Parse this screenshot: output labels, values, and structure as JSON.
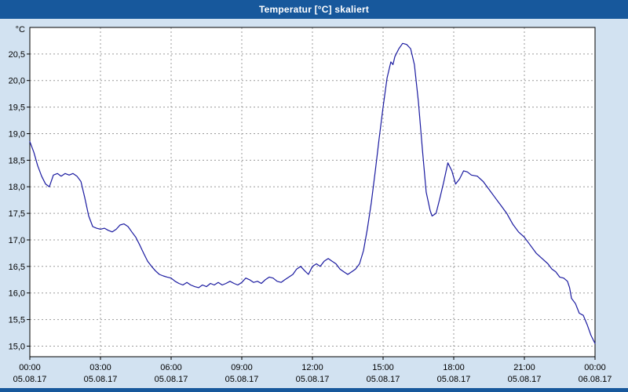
{
  "window": {
    "title": "Temperatur [°C] skaliert"
  },
  "colors": {
    "titlebar": "#17589c",
    "frame": "#d2e2f1",
    "plot_bg": "#ffffff",
    "grid": "#9b9b9b",
    "line": "#1a1aa0",
    "axis_text": "#000000",
    "border": "#000000"
  },
  "chart_data": {
    "type": "line",
    "title": "Temperatur [°C] skaliert",
    "ylabel": "°C",
    "y_unit_label": "°C",
    "ylim": [
      14.8,
      21.0
    ],
    "xlim_hours": [
      0,
      24
    ],
    "grid": "dashed",
    "legend": "none",
    "y_ticks": [
      {
        "value": 15.0,
        "label": "15,0"
      },
      {
        "value": 15.5,
        "label": "15,5"
      },
      {
        "value": 16.0,
        "label": "16,0"
      },
      {
        "value": 16.5,
        "label": "16,5"
      },
      {
        "value": 17.0,
        "label": "17,0"
      },
      {
        "value": 17.5,
        "label": "17,5"
      },
      {
        "value": 18.0,
        "label": "18,0"
      },
      {
        "value": 18.5,
        "label": "18,5"
      },
      {
        "value": 19.0,
        "label": "19,0"
      },
      {
        "value": 19.5,
        "label": "19,5"
      },
      {
        "value": 20.0,
        "label": "20,0"
      },
      {
        "value": 20.5,
        "label": "20,5"
      }
    ],
    "x_ticks": [
      {
        "hour": 0,
        "time": "00:00",
        "date": "05.08.17"
      },
      {
        "hour": 3,
        "time": "03:00",
        "date": "05.08.17"
      },
      {
        "hour": 6,
        "time": "06:00",
        "date": "05.08.17"
      },
      {
        "hour": 9,
        "time": "09:00",
        "date": "05.08.17"
      },
      {
        "hour": 12,
        "time": "12:00",
        "date": "05.08.17"
      },
      {
        "hour": 15,
        "time": "15:00",
        "date": "05.08.17"
      },
      {
        "hour": 18,
        "time": "18:00",
        "date": "05.08.17"
      },
      {
        "hour": 21,
        "time": "21:00",
        "date": "05.08.17"
      },
      {
        "hour": 24,
        "time": "00:00",
        "date": "06.08.17"
      }
    ],
    "series": [
      {
        "name": "Temperatur",
        "color": "#1a1aa0",
        "points": [
          [
            0,
            18.85
          ],
          [
            0.17,
            18.65
          ],
          [
            0.33,
            18.4
          ],
          [
            0.5,
            18.2
          ],
          [
            0.67,
            18.05
          ],
          [
            0.83,
            18.0
          ],
          [
            1.0,
            18.22
          ],
          [
            1.17,
            18.25
          ],
          [
            1.33,
            18.2
          ],
          [
            1.5,
            18.25
          ],
          [
            1.67,
            18.22
          ],
          [
            1.83,
            18.25
          ],
          [
            2.0,
            18.2
          ],
          [
            2.17,
            18.1
          ],
          [
            2.33,
            17.8
          ],
          [
            2.5,
            17.45
          ],
          [
            2.67,
            17.25
          ],
          [
            2.83,
            17.22
          ],
          [
            3.0,
            17.2
          ],
          [
            3.17,
            17.22
          ],
          [
            3.33,
            17.18
          ],
          [
            3.5,
            17.15
          ],
          [
            3.67,
            17.2
          ],
          [
            3.83,
            17.28
          ],
          [
            4.0,
            17.3
          ],
          [
            4.17,
            17.25
          ],
          [
            4.33,
            17.15
          ],
          [
            4.5,
            17.05
          ],
          [
            4.67,
            16.9
          ],
          [
            4.83,
            16.75
          ],
          [
            5.0,
            16.6
          ],
          [
            5.17,
            16.5
          ],
          [
            5.33,
            16.42
          ],
          [
            5.5,
            16.35
          ],
          [
            5.67,
            16.32
          ],
          [
            5.83,
            16.3
          ],
          [
            6.0,
            16.28
          ],
          [
            6.17,
            16.22
          ],
          [
            6.33,
            16.18
          ],
          [
            6.5,
            16.15
          ],
          [
            6.67,
            16.2
          ],
          [
            6.83,
            16.15
          ],
          [
            7.0,
            16.12
          ],
          [
            7.17,
            16.1
          ],
          [
            7.33,
            16.15
          ],
          [
            7.5,
            16.12
          ],
          [
            7.67,
            16.18
          ],
          [
            7.83,
            16.15
          ],
          [
            8.0,
            16.2
          ],
          [
            8.17,
            16.15
          ],
          [
            8.33,
            16.18
          ],
          [
            8.5,
            16.22
          ],
          [
            8.67,
            16.18
          ],
          [
            8.83,
            16.15
          ],
          [
            9.0,
            16.2
          ],
          [
            9.17,
            16.28
          ],
          [
            9.33,
            16.25
          ],
          [
            9.5,
            16.2
          ],
          [
            9.67,
            16.22
          ],
          [
            9.83,
            16.18
          ],
          [
            10.0,
            16.25
          ],
          [
            10.17,
            16.3
          ],
          [
            10.33,
            16.28
          ],
          [
            10.5,
            16.22
          ],
          [
            10.67,
            16.2
          ],
          [
            10.83,
            16.25
          ],
          [
            11.0,
            16.3
          ],
          [
            11.17,
            16.35
          ],
          [
            11.33,
            16.45
          ],
          [
            11.5,
            16.5
          ],
          [
            11.67,
            16.42
          ],
          [
            11.83,
            16.35
          ],
          [
            12.0,
            16.5
          ],
          [
            12.17,
            16.55
          ],
          [
            12.33,
            16.5
          ],
          [
            12.5,
            16.6
          ],
          [
            12.67,
            16.65
          ],
          [
            12.83,
            16.6
          ],
          [
            13.0,
            16.55
          ],
          [
            13.17,
            16.45
          ],
          [
            13.33,
            16.4
          ],
          [
            13.5,
            16.35
          ],
          [
            13.67,
            16.4
          ],
          [
            13.83,
            16.45
          ],
          [
            14.0,
            16.55
          ],
          [
            14.17,
            16.8
          ],
          [
            14.33,
            17.2
          ],
          [
            14.5,
            17.7
          ],
          [
            14.67,
            18.3
          ],
          [
            14.83,
            18.9
          ],
          [
            15.0,
            19.5
          ],
          [
            15.17,
            20.05
          ],
          [
            15.33,
            20.35
          ],
          [
            15.42,
            20.3
          ],
          [
            15.5,
            20.45
          ],
          [
            15.67,
            20.6
          ],
          [
            15.83,
            20.7
          ],
          [
            16.0,
            20.68
          ],
          [
            16.17,
            20.6
          ],
          [
            16.33,
            20.3
          ],
          [
            16.5,
            19.6
          ],
          [
            16.67,
            18.7
          ],
          [
            16.83,
            17.9
          ],
          [
            17.0,
            17.55
          ],
          [
            17.08,
            17.45
          ],
          [
            17.25,
            17.5
          ],
          [
            17.42,
            17.8
          ],
          [
            17.58,
            18.1
          ],
          [
            17.75,
            18.45
          ],
          [
            17.92,
            18.3
          ],
          [
            18.08,
            18.05
          ],
          [
            18.25,
            18.15
          ],
          [
            18.42,
            18.3
          ],
          [
            18.58,
            18.28
          ],
          [
            18.75,
            18.22
          ],
          [
            19.0,
            18.2
          ],
          [
            19.25,
            18.1
          ],
          [
            19.5,
            17.95
          ],
          [
            19.75,
            17.8
          ],
          [
            20.0,
            17.65
          ],
          [
            20.25,
            17.5
          ],
          [
            20.5,
            17.3
          ],
          [
            20.75,
            17.15
          ],
          [
            21.0,
            17.05
          ],
          [
            21.25,
            16.9
          ],
          [
            21.5,
            16.75
          ],
          [
            21.75,
            16.65
          ],
          [
            22.0,
            16.55
          ],
          [
            22.17,
            16.45
          ],
          [
            22.33,
            16.4
          ],
          [
            22.5,
            16.3
          ],
          [
            22.67,
            16.28
          ],
          [
            22.83,
            16.22
          ],
          [
            22.92,
            16.1
          ],
          [
            23.0,
            15.9
          ],
          [
            23.17,
            15.8
          ],
          [
            23.33,
            15.62
          ],
          [
            23.5,
            15.58
          ],
          [
            23.67,
            15.4
          ],
          [
            23.83,
            15.2
          ],
          [
            24.0,
            15.05
          ]
        ]
      }
    ]
  }
}
